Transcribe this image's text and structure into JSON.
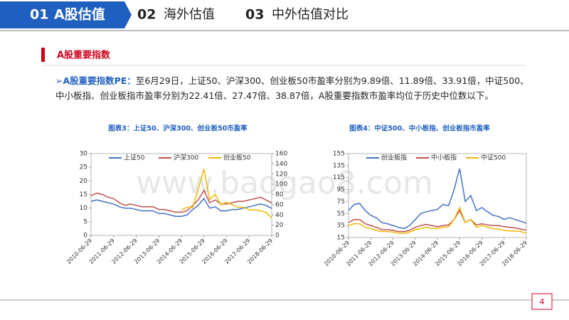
{
  "tabs": [
    {
      "num": "01",
      "label": "A股估值"
    },
    {
      "num": "02",
      "label": "海外估值"
    },
    {
      "num": "03",
      "label": "中外估值对比"
    }
  ],
  "section": "A股重要指数",
  "paragraph": {
    "lead": "A股重要指数PE：",
    "text": "至6月29日，上证50、沪深300、创业板50市盈率分别为9.89倍、11.89倍、33.91倍，中证500、中小板指、创业板指市盈率分别为22.41倍、27.47倍、38.87倍，A股重要指数市盈率均位于历史中位数以下。"
  },
  "watermark": "www.baogao8.com",
  "page": "4",
  "chart_data": [
    {
      "type": "line",
      "title": "图表3：上证50、沪深300、创业板50市盈率",
      "x": [
        "2010-06-29",
        "2010-09-29",
        "2010-12-29",
        "2011-03-29",
        "2011-06-29",
        "2011-09-29",
        "2011-12-29",
        "2012-03-29",
        "2012-06-29",
        "2012-09-29",
        "2012-12-29",
        "2013-03-29",
        "2013-06-29",
        "2013-09-29",
        "2013-12-29",
        "2014-03-29",
        "2014-06-29",
        "2014-09-29",
        "2014-12-29",
        "2015-03-29",
        "2015-06-29",
        "2015-09-29",
        "2015-12-29",
        "2016-03-29",
        "2016-06-29",
        "2016-09-29",
        "2016-12-29",
        "2017-03-29",
        "2017-06-29",
        "2017-09-29",
        "2017-12-29",
        "2018-03-29",
        "2018-06-29"
      ],
      "xticks": [
        "2010-06-29",
        "2011-06-29",
        "2012-06-29",
        "2013-06-29",
        "2014-06-29",
        "2015-06-29",
        "2016-06-29",
        "2017-06-29",
        "2018-06-29"
      ],
      "ylim": [
        0,
        30
      ],
      "yticks": [
        0,
        5,
        10,
        15,
        20,
        25,
        30
      ],
      "y2lim": [
        0,
        160
      ],
      "y2ticks": [
        0,
        20,
        40,
        60,
        80,
        100,
        120,
        140,
        160
      ],
      "series": [
        {
          "name": "上证50",
          "color": "#4472c4",
          "values": [
            12.5,
            13,
            12.5,
            12,
            11.5,
            10.5,
            10,
            10,
            9.5,
            9,
            9,
            9,
            8,
            8,
            7.5,
            7,
            7,
            7.5,
            9.5,
            11,
            13.5,
            10,
            10.5,
            9,
            9,
            9.5,
            9.5,
            10,
            10.5,
            11,
            11.5,
            11,
            9.89
          ]
        },
        {
          "name": "沪深300",
          "color": "#c0504d",
          "values": [
            14.5,
            15.5,
            15,
            14,
            13.5,
            12,
            11,
            11.5,
            11,
            10.5,
            10.5,
            10.5,
            9.5,
            9.5,
            9,
            8.5,
            8.5,
            9,
            11,
            13,
            16.5,
            12,
            13,
            11.5,
            11.5,
            12,
            12.5,
            12.5,
            13,
            13.5,
            14,
            13,
            11.89
          ]
        },
        {
          "name": "创业板50",
          "color": "#f0b800",
          "axis": "y2",
          "values": [
            null,
            null,
            null,
            null,
            null,
            null,
            null,
            null,
            null,
            null,
            null,
            null,
            null,
            null,
            null,
            null,
            50,
            55,
            55,
            90,
            130,
            70,
            80,
            60,
            65,
            60,
            55,
            55,
            50,
            50,
            48,
            45,
            33.91
          ]
        }
      ]
    },
    {
      "type": "line",
      "title": "图表4：中证500、中小板指、创业板指市盈率",
      "x": [
        "2010-06-29",
        "2010-09-29",
        "2010-12-29",
        "2011-03-29",
        "2011-06-29",
        "2011-09-29",
        "2011-12-29",
        "2012-03-29",
        "2012-06-29",
        "2012-09-29",
        "2012-12-29",
        "2013-03-29",
        "2013-06-29",
        "2013-09-29",
        "2013-12-29",
        "2014-03-29",
        "2014-06-29",
        "2014-09-29",
        "2014-12-29",
        "2015-03-29",
        "2015-06-29",
        "2015-09-29",
        "2015-12-29",
        "2016-03-29",
        "2016-06-29",
        "2016-09-29",
        "2016-12-29",
        "2017-03-29",
        "2017-06-29",
        "2017-09-29",
        "2017-12-29",
        "2018-03-29",
        "2018-06-29"
      ],
      "xticks": [
        "2010-06-29",
        "2011-06-29",
        "2012-06-29",
        "2013-06-29",
        "2014-06-29",
        "2015-06-29",
        "2016-06-29",
        "2017-06-29",
        "2018-06-29"
      ],
      "ylim": [
        15,
        155
      ],
      "yticks": [
        15,
        35,
        55,
        75,
        95,
        115,
        135,
        155
      ],
      "series": [
        {
          "name": "创业板指",
          "color": "#4472c4",
          "values": [
            60,
            70,
            72,
            60,
            52,
            48,
            40,
            38,
            35,
            32,
            30,
            35,
            45,
            55,
            58,
            60,
            62,
            70,
            68,
            95,
            130,
            75,
            85,
            60,
            65,
            58,
            52,
            50,
            45,
            48,
            45,
            42,
            38.87
          ]
        },
        {
          "name": "中小板指",
          "color": "#c0504d",
          "values": [
            40,
            45,
            45,
            38,
            35,
            32,
            28,
            28,
            27,
            25,
            25,
            27,
            32,
            35,
            37,
            35,
            33,
            35,
            36,
            45,
            60,
            40,
            45,
            36,
            38,
            36,
            35,
            35,
            33,
            32,
            31,
            29,
            27.47
          ]
        },
        {
          "name": "中证500",
          "color": "#f0b800",
          "values": [
            35,
            38,
            38,
            32,
            30,
            27,
            25,
            25,
            24,
            22,
            22,
            24,
            28,
            30,
            32,
            30,
            30,
            32,
            33,
            45,
            65,
            40,
            45,
            32,
            35,
            32,
            30,
            29,
            27,
            26,
            26,
            25,
            22.41
          ]
        }
      ]
    }
  ]
}
